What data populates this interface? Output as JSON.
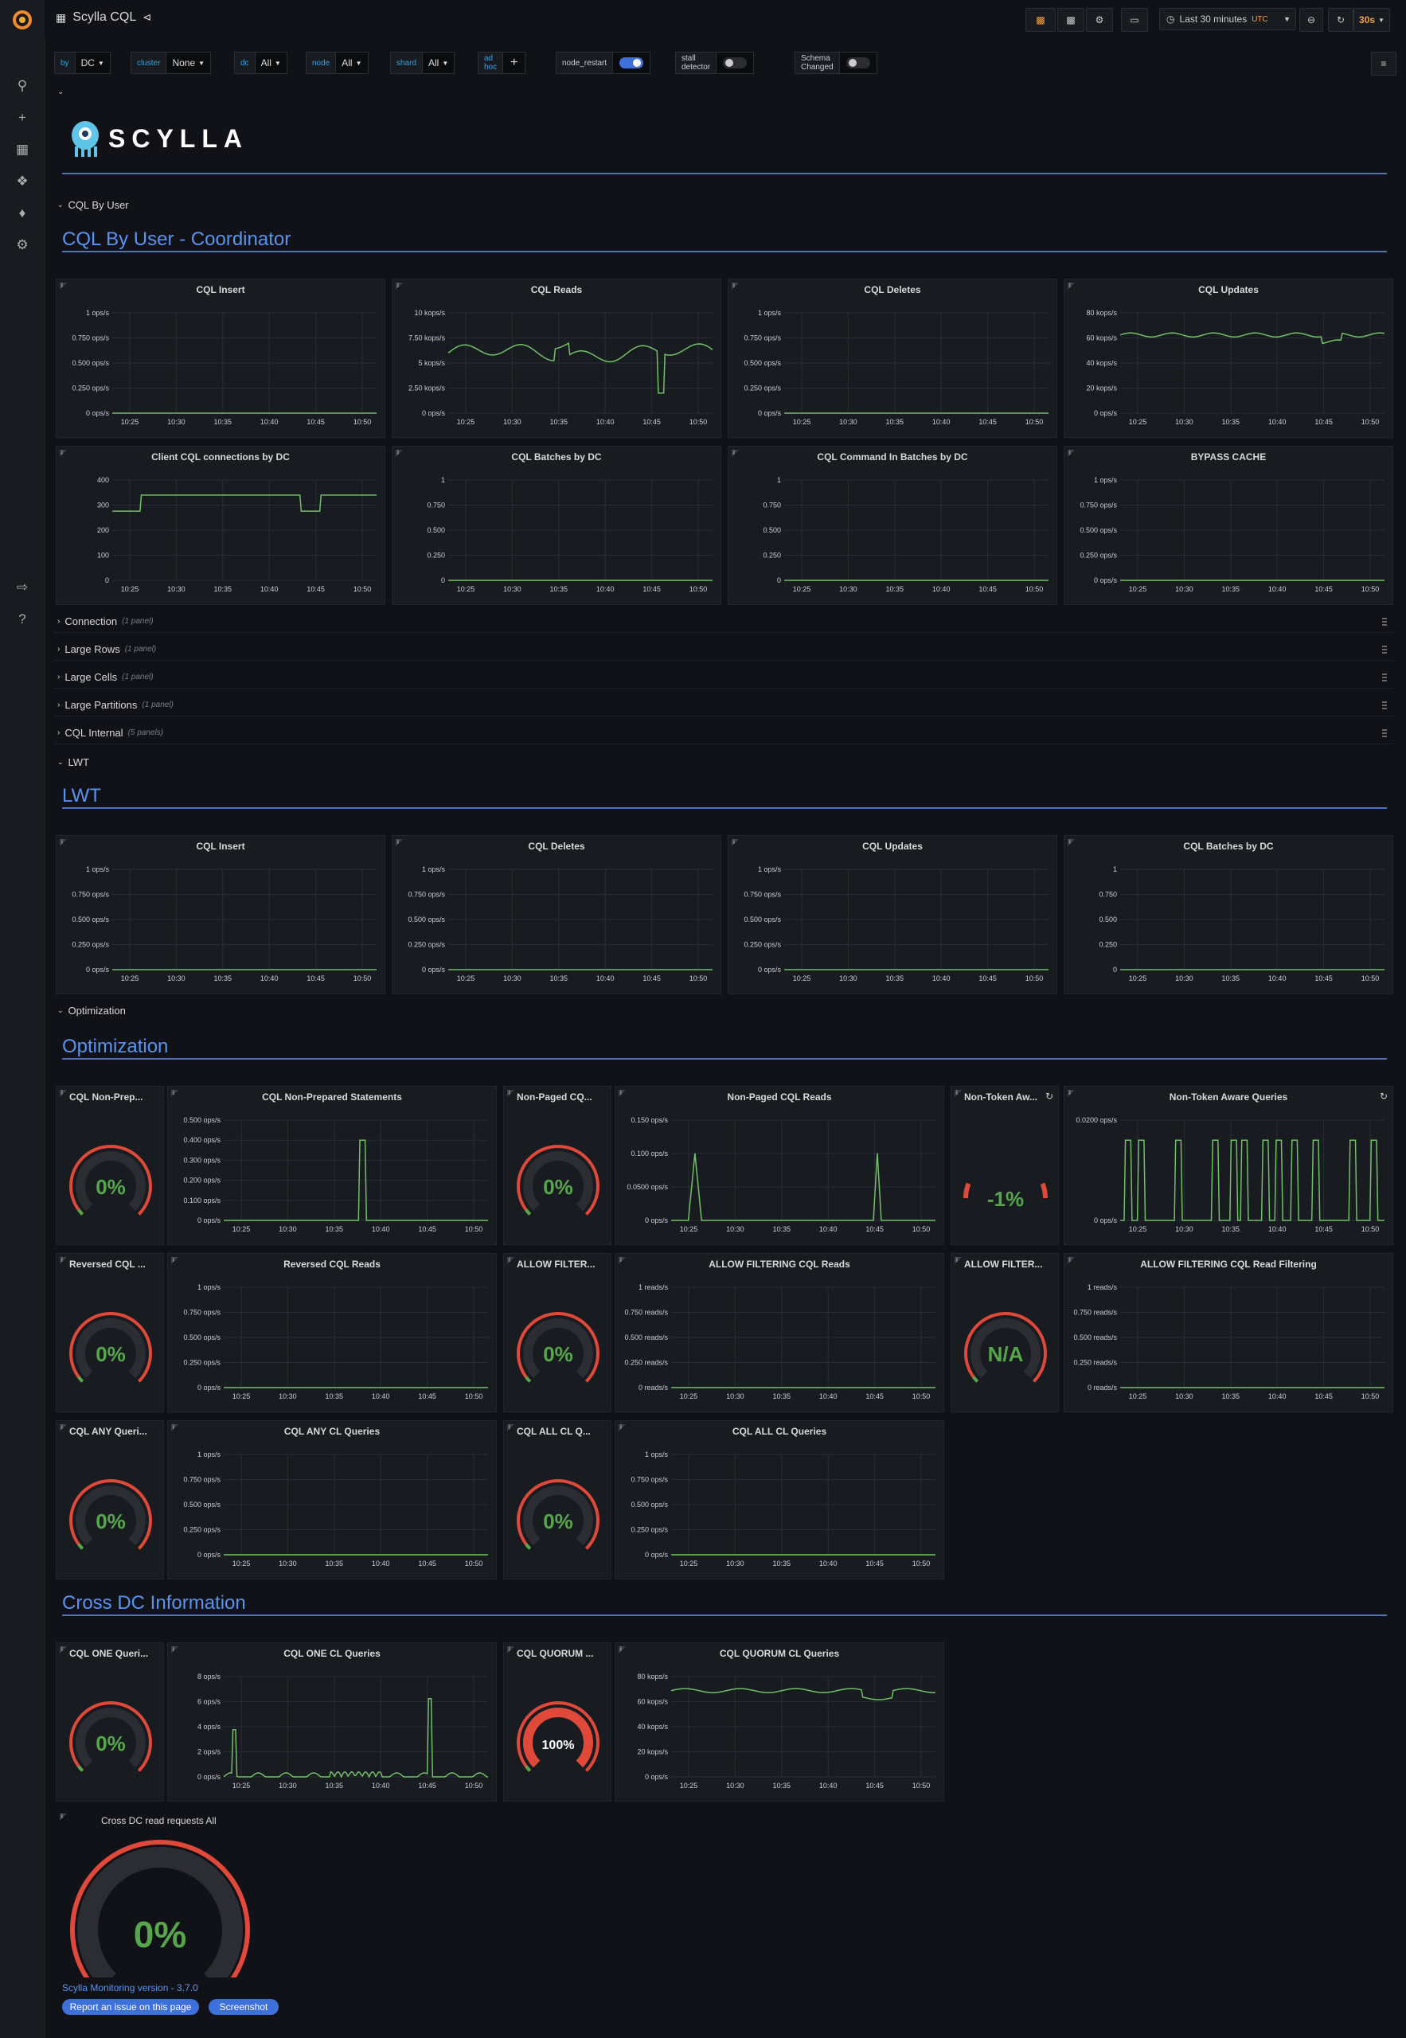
{
  "app": {
    "title": "Scylla CQL"
  },
  "topbar": {
    "time_range": "Last 30 minutes",
    "timezone": "UTC",
    "refresh": "30s"
  },
  "variables": [
    {
      "label": "by",
      "value": "DC"
    },
    {
      "label": "cluster",
      "value": "None"
    },
    {
      "label": "dc",
      "value": "All"
    },
    {
      "label": "node",
      "value": "All"
    },
    {
      "label": "shard",
      "value": "All"
    },
    {
      "label": "ad hoc",
      "value": "+"
    }
  ],
  "toggles": [
    {
      "label": "node_restart",
      "on": true
    },
    {
      "label": "stall detector",
      "on": false
    },
    {
      "label": "Schema Changed",
      "on": false
    }
  ],
  "logo": {
    "text": "SCYLLA"
  },
  "rows": {
    "cql_by_user": "CQL By User",
    "connection": {
      "label": "Connection",
      "count": "(1 panel)"
    },
    "large_rows": {
      "label": "Large Rows",
      "count": "(1 panel)"
    },
    "large_cells": {
      "label": "Large Cells",
      "count": "(1 panel)"
    },
    "large_partitions": {
      "label": "Large Partitions",
      "count": "(1 panel)"
    },
    "cql_internal": {
      "label": "CQL Internal",
      "count": "(5 panels)"
    },
    "lwt": "LWT",
    "optimization": "Optimization"
  },
  "sections": {
    "coordinator": "CQL By User - Coordinator",
    "lwt": "LWT",
    "optimization": "Optimization",
    "cross_dc": "Cross DC Information"
  },
  "x_ticks": [
    "10:25",
    "10:30",
    "10:35",
    "10:40",
    "10:45",
    "10:50"
  ],
  "graphs": [
    {
      "id": "g1",
      "title": "CQL Insert",
      "y_ticks": [
        "1 ops/s",
        "0.750 ops/s",
        "0.500 ops/s",
        "0.250 ops/s",
        "0 ops/s"
      ]
    },
    {
      "id": "g2",
      "title": "CQL Reads",
      "y_ticks": [
        "10 kops/s",
        "7.50 kops/s",
        "5 kops/s",
        "2.50 kops/s",
        "0 ops/s"
      ]
    },
    {
      "id": "g3",
      "title": "CQL Deletes",
      "y_ticks": [
        "1 ops/s",
        "0.750 ops/s",
        "0.500 ops/s",
        "0.250 ops/s",
        "0 ops/s"
      ]
    },
    {
      "id": "g4",
      "title": "CQL Updates",
      "y_ticks": [
        "80 kops/s",
        "60 kops/s",
        "40 kops/s",
        "20 kops/s",
        "0 ops/s"
      ]
    },
    {
      "id": "g5",
      "title": "Client CQL connections by DC",
      "y_ticks": [
        "400",
        "300",
        "200",
        "100",
        "0"
      ]
    },
    {
      "id": "g6",
      "title": "CQL Batches by DC",
      "y_ticks": [
        "1",
        "0.750",
        "0.500",
        "0.250",
        "0"
      ]
    },
    {
      "id": "g7",
      "title": "CQL Command In Batches by DC",
      "y_ticks": [
        "1",
        "0.750",
        "0.500",
        "0.250",
        "0"
      ]
    },
    {
      "id": "g8",
      "title": "BYPASS CACHE",
      "y_ticks": [
        "1 ops/s",
        "0.750 ops/s",
        "0.500 ops/s",
        "0.250 ops/s",
        "0 ops/s"
      ]
    },
    {
      "id": "g9",
      "title": "CQL Insert",
      "y_ticks": [
        "1 ops/s",
        "0.750 ops/s",
        "0.500 ops/s",
        "0.250 ops/s",
        "0 ops/s"
      ]
    },
    {
      "id": "g10",
      "title": "CQL Deletes",
      "y_ticks": [
        "1 ops/s",
        "0.750 ops/s",
        "0.500 ops/s",
        "0.250 ops/s",
        "0 ops/s"
      ]
    },
    {
      "id": "g11",
      "title": "CQL Updates",
      "y_ticks": [
        "1 ops/s",
        "0.750 ops/s",
        "0.500 ops/s",
        "0.250 ops/s",
        "0 ops/s"
      ]
    },
    {
      "id": "g12",
      "title": "CQL Batches by DC",
      "y_ticks": [
        "1",
        "0.750",
        "0.500",
        "0.250",
        "0"
      ]
    },
    {
      "id": "g13",
      "title": "CQL Non-Prepared Statements",
      "y_ticks": [
        "0.500 ops/s",
        "0.400 ops/s",
        "0.300 ops/s",
        "0.200 ops/s",
        "0.100 ops/s",
        "0 ops/s"
      ]
    },
    {
      "id": "g14",
      "title": "Non-Paged CQL Reads",
      "y_ticks": [
        "0.150 ops/s",
        "0.100 ops/s",
        "0.0500 ops/s",
        "0 ops/s"
      ]
    },
    {
      "id": "g15",
      "title": "Non-Token Aware Queries",
      "y_ticks": [
        "0.0200 ops/s",
        "0 ops/s"
      ]
    },
    {
      "id": "g16",
      "title": "Reversed CQL Reads",
      "y_ticks": [
        "1 ops/s",
        "0.750 ops/s",
        "0.500 ops/s",
        "0.250 ops/s",
        "0 ops/s"
      ]
    },
    {
      "id": "g17",
      "title": "ALLOW FILTERING CQL Reads",
      "y_ticks": [
        "1 reads/s",
        "0.750 reads/s",
        "0.500 reads/s",
        "0.250 reads/s",
        "0 reads/s"
      ]
    },
    {
      "id": "g18",
      "title": "ALLOW FILTERING CQL Read Filtering",
      "y_ticks": [
        "1 reads/s",
        "0.750 reads/s",
        "0.500 reads/s",
        "0.250 reads/s",
        "0 reads/s"
      ]
    },
    {
      "id": "g19",
      "title": "CQL ANY CL Queries",
      "y_ticks": [
        "1 ops/s",
        "0.750 ops/s",
        "0.500 ops/s",
        "0.250 ops/s",
        "0 ops/s"
      ]
    },
    {
      "id": "g20",
      "title": "CQL ALL CL Queries",
      "y_ticks": [
        "1 ops/s",
        "0.750 ops/s",
        "0.500 ops/s",
        "0.250 ops/s",
        "0 ops/s"
      ]
    },
    {
      "id": "g21",
      "title": "CQL ONE CL Queries",
      "y_ticks": [
        "8 ops/s",
        "6 ops/s",
        "4 ops/s",
        "2 ops/s",
        "0 ops/s"
      ]
    },
    {
      "id": "g22",
      "title": "CQL QUORUM CL Queries",
      "y_ticks": [
        "80 kops/s",
        "60 kops/s",
        "40 kops/s",
        "20 kops/s",
        "0 ops/s"
      ]
    }
  ],
  "gauges": [
    {
      "id": "k1",
      "title": "CQL Non-Prep...",
      "value": "0%",
      "level": 0
    },
    {
      "id": "k2",
      "title": "Non-Paged CQ...",
      "value": "0%",
      "level": 0
    },
    {
      "id": "k3",
      "title": "Non-Token Aw...",
      "value": "-1%",
      "level": 0
    },
    {
      "id": "k4",
      "title": "Reversed CQL ...",
      "value": "0%",
      "level": 0
    },
    {
      "id": "k5",
      "title": "ALLOW FILTER...",
      "value": "0%",
      "level": 0
    },
    {
      "id": "k6",
      "title": "ALLOW FILTER...",
      "value": "N/A",
      "level": 0
    },
    {
      "id": "k7",
      "title": "CQL ANY Queri...",
      "value": "0%",
      "level": 0
    },
    {
      "id": "k8",
      "title": "CQL ALL CL Q...",
      "value": "0%",
      "level": 0
    },
    {
      "id": "k9",
      "title": "CQL ONE Queri...",
      "value": "0%",
      "level": 0
    },
    {
      "id": "k10",
      "title": "CQL QUORUM ...",
      "value": "100%",
      "level": 1
    },
    {
      "id": "k11",
      "title": "Cross DC read requests All",
      "value": "0%",
      "level": 0
    }
  ],
  "footer": {
    "version": "Scylla Monitoring version - 3.7.0",
    "report": "Report an issue on this page",
    "screenshot": "Screenshot"
  },
  "colors": {
    "series": "#73bf69",
    "accent": "#5794f2",
    "gauge_red": "#e0483a",
    "gauge_green": "#56a64b"
  }
}
